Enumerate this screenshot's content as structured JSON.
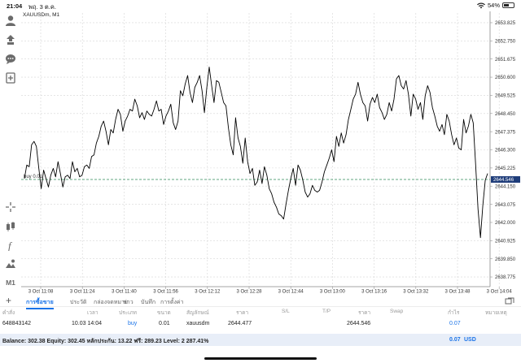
{
  "status": {
    "time": "21:04",
    "date": "พฤ. 3 ต.ค.",
    "battery": "54%",
    "battery_level": 54
  },
  "chart": {
    "symbol_title": "XAUUSDm, M1",
    "buy_line_label": "buy 0.01",
    "current_price": "2644.546",
    "line_color": "#000000",
    "buy_line_color": "#2e8b57",
    "price_tag_color": "#1f3d7a"
  },
  "chart_data": {
    "type": "line",
    "x_ticks": [
      "3 Oct 11:08",
      "3 Oct 11:24",
      "3 Oct 11:40",
      "3 Oct 11:56",
      "3 Oct 12:12",
      "3 Oct 12:28",
      "3 Oct 12:44",
      "3 Oct 13:00",
      "3 Oct 13:16",
      "3 Oct 13:32",
      "3 Oct 13:48",
      "3 Oct 14:04"
    ],
    "y_ticks": [
      "2653.825",
      "2652.750",
      "2651.675",
      "2650.600",
      "2649.525",
      "2648.450",
      "2647.375",
      "2646.300",
      "2645.225",
      "2644.150",
      "2643.075",
      "2642.000",
      "2640.925",
      "2639.850",
      "2638.775"
    ],
    "ylim": [
      2638.2,
      2654.4
    ],
    "series": [
      {
        "values": [
          2644.6,
          2645.4,
          2645.3,
          2646.6,
          2646.8,
          2646.5,
          2645.2,
          2644.0,
          2645.1,
          2644.6,
          2644.1,
          2644.8,
          2645.2,
          2644.7,
          2645.6,
          2644.9,
          2644.1,
          2644.7,
          2644.8,
          2644.6,
          2645.6,
          2645.0,
          2645.2,
          2644.7,
          2644.8,
          2645.3,
          2645.4,
          2645.2,
          2645.9,
          2646.0,
          2646.7,
          2647.1,
          2647.7,
          2648.0,
          2647.4,
          2646.6,
          2647.5,
          2647.3,
          2648.1,
          2648.7,
          2648.4,
          2647.4,
          2648.0,
          2648.3,
          2648.7,
          2648.6,
          2649.3,
          2648.9,
          2648.2,
          2648.5,
          2648.1,
          2648.6,
          2648.4,
          2648.3,
          2648.7,
          2649.2,
          2648.6,
          2648.7,
          2647.8,
          2648.3,
          2648.6,
          2649.0,
          2647.9,
          2647.5,
          2648.0,
          2649.8,
          2649.5,
          2650.2,
          2650.7,
          2649.7,
          2649.1,
          2650.0,
          2650.3,
          2650.7,
          2649.8,
          2648.5,
          2650.0,
          2651.2,
          2650.1,
          2649.1,
          2650.4,
          2650.3,
          2649.7,
          2649.1,
          2648.9,
          2647.6,
          2646.6,
          2646.0,
          2648.2,
          2647.0,
          2646.5,
          2645.5,
          2647.0,
          2645.6,
          2644.9,
          2645.2,
          2644.2,
          2644.4,
          2645.1,
          2644.3,
          2645.3,
          2644.8,
          2644.0,
          2643.7,
          2643.2,
          2642.9,
          2642.5,
          2642.4,
          2642.2,
          2643.1,
          2643.9,
          2644.6,
          2645.2,
          2644.2,
          2645.4,
          2645.1,
          2644.5,
          2643.8,
          2643.5,
          2643.7,
          2644.2,
          2643.9,
          2643.8,
          2643.9,
          2644.4,
          2645.0,
          2645.4,
          2645.8,
          2646.3,
          2645.6,
          2647.1,
          2646.5,
          2647.3,
          2646.7,
          2647.2,
          2648.1,
          2648.7,
          2649.3,
          2649.6,
          2650.3,
          2649.6,
          2649.1,
          2648.9,
          2648.0,
          2649.0,
          2649.4,
          2649.1,
          2649.6,
          2648.8,
          2648.5,
          2648.1,
          2648.4,
          2649.1,
          2648.6,
          2649.3,
          2650.5,
          2650.7,
          2650.1,
          2649.9,
          2650.4,
          2649.6,
          2648.3,
          2649.6,
          2649.3,
          2648.7,
          2649.1,
          2648.1,
          2649.5,
          2650.1,
          2649.7,
          2648.8,
          2648.3,
          2647.7,
          2647.4,
          2647.8,
          2647.2,
          2648.4,
          2648.0,
          2647.2,
          2646.6,
          2647.0,
          2646.4,
          2646.3,
          2648.1,
          2647.3,
          2647.7,
          2648.4,
          2647.9,
          2645.4,
          2642.8,
          2641.1,
          2643.0,
          2644.5,
          2644.9
        ]
      }
    ]
  },
  "tabs": {
    "items": [
      "การซื้อขาย",
      "ประวัติ",
      "กล่องจดหมาย",
      "ข่าว",
      "บันทึก",
      "การตั้งค่า"
    ]
  },
  "table": {
    "headers": [
      "คำสั่ง",
      "เวลา",
      "ประเภท",
      "ขนาด",
      "สัญลักษณ์",
      "ราคา",
      "S/L",
      "T/P",
      "ราคา",
      "Swap",
      "กำไร",
      "หมายเหตุ"
    ],
    "row": {
      "order": "648843142",
      "time": "10.03 14:04",
      "type": "buy",
      "size": "0.01",
      "symbol": "xauusdm",
      "price": "2644.477",
      "current_price": "2644.546",
      "profit": "0.07"
    }
  },
  "balance": {
    "text": "Balance: 302.38 Equity: 302.45 หลักประกัน: 13.22 ฟรี: 289.23 Level: 2 287.41%",
    "amount": "0.07",
    "currency": "USD"
  }
}
